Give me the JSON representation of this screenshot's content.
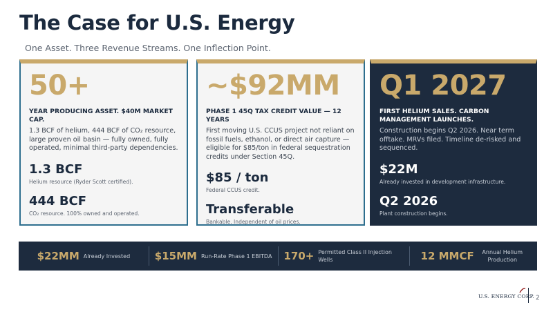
{
  "header": {
    "title": "The Case for U.S. Energy",
    "subtitle": "One Asset.  Three Revenue Streams.  One Inflection Point."
  },
  "cards": [
    {
      "big": "50+",
      "heading": "YEAR PRODUCING ASSET. $40M MARKET CAP.",
      "body": "1.3 BCF of helium, 444 BCF of CO₂ resource, large proven oil basin — fully owned, fully operated, minimal third-party dependencies.",
      "stats": [
        {
          "value": "1.3 BCF",
          "sub": "Helium resource (Ryder Scott certified)."
        },
        {
          "value": "444 BCF",
          "sub": "CO₂ resource. 100% owned and operated."
        }
      ]
    },
    {
      "big": "~$92MM",
      "heading": "PHASE 1 45Q TAX CREDIT VALUE — 12 YEARS",
      "body": "First moving U.S. CCUS project not reliant on fossil fuels, ethanol, or direct air capture — eligible for $85/ton in federal sequestration credits under Section 45Q.",
      "stats": [
        {
          "value": "$85 / ton",
          "sub": "Federal CCUS credit."
        },
        {
          "value": "Transferable",
          "sub": "Bankable. Independent of oil prices."
        }
      ]
    },
    {
      "big": "Q1 2027",
      "heading": "FIRST HELIUM SALES. CARBON MANAGEMENT LAUNCHES.",
      "body": "Construction begins Q2 2026. Near term offtake. MRVs filed. Timeline de-risked and sequenced.",
      "stats": [
        {
          "value": "$22M",
          "sub": "Already invested in development infrastructure."
        },
        {
          "value": "Q2 2026",
          "sub": "Plant construction begins."
        }
      ]
    }
  ],
  "bar": [
    {
      "num": "$22MM",
      "label": "Already Invested"
    },
    {
      "num": "$15MM",
      "label": "Run-Rate Phase 1 EBITDA"
    },
    {
      "num": "170+",
      "label": "Permitted Class II Injection Wells"
    },
    {
      "num": "12 MMCF",
      "label": "Annual Helium Production"
    }
  ],
  "footer": {
    "logo": "U.S. ENERGY CORP.",
    "page": "2"
  },
  "colors": {
    "navy": "#1d2b3e",
    "gold": "#c9a96b",
    "teal_border": "#2d6e8e"
  }
}
